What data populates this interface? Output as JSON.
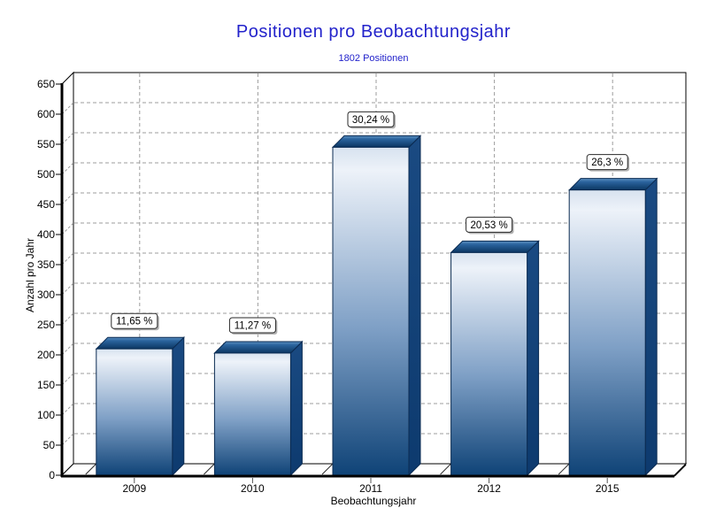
{
  "chart_data": {
    "type": "bar",
    "title": "Positionen pro Beobachtungsjahr",
    "subtitle": "1802 Positionen",
    "xlabel": "Beobachtungsjahr",
    "ylabel": "Anzahl pro Jahr",
    "categories": [
      "2009",
      "2010",
      "2011",
      "2012",
      "2015"
    ],
    "values": [
      210,
      203,
      545,
      370,
      474
    ],
    "bar_labels": [
      "11,65 %",
      "11,27 %",
      "30,24 %",
      "20,53 %",
      "26,3 %"
    ],
    "total_positions": 1802,
    "ylim": [
      0,
      650
    ],
    "ytick_step": 50,
    "grid": "dashed",
    "style_3d": true,
    "legend_position": "none",
    "colors": {
      "title_text": "#2323CB",
      "subtitle_text": "#2323CB",
      "axis_text": "#000000",
      "bar_front_light": "#EDF2F9",
      "bar_front_dark": "#0F4377",
      "bar_side_dark": "#0D3A6E",
      "bar_top_back": "#5C8FC0",
      "bar_top_front": "#0B3661",
      "bar_outline": "#0B2B52",
      "gridline": "#9C9C9C",
      "axis_line": "#000000",
      "mark_background": "#FFFFFF",
      "mark_border": "#2A2A2A",
      "mark_shadow": "#B0B0B0",
      "wall_background": "#FFFFFF"
    }
  }
}
